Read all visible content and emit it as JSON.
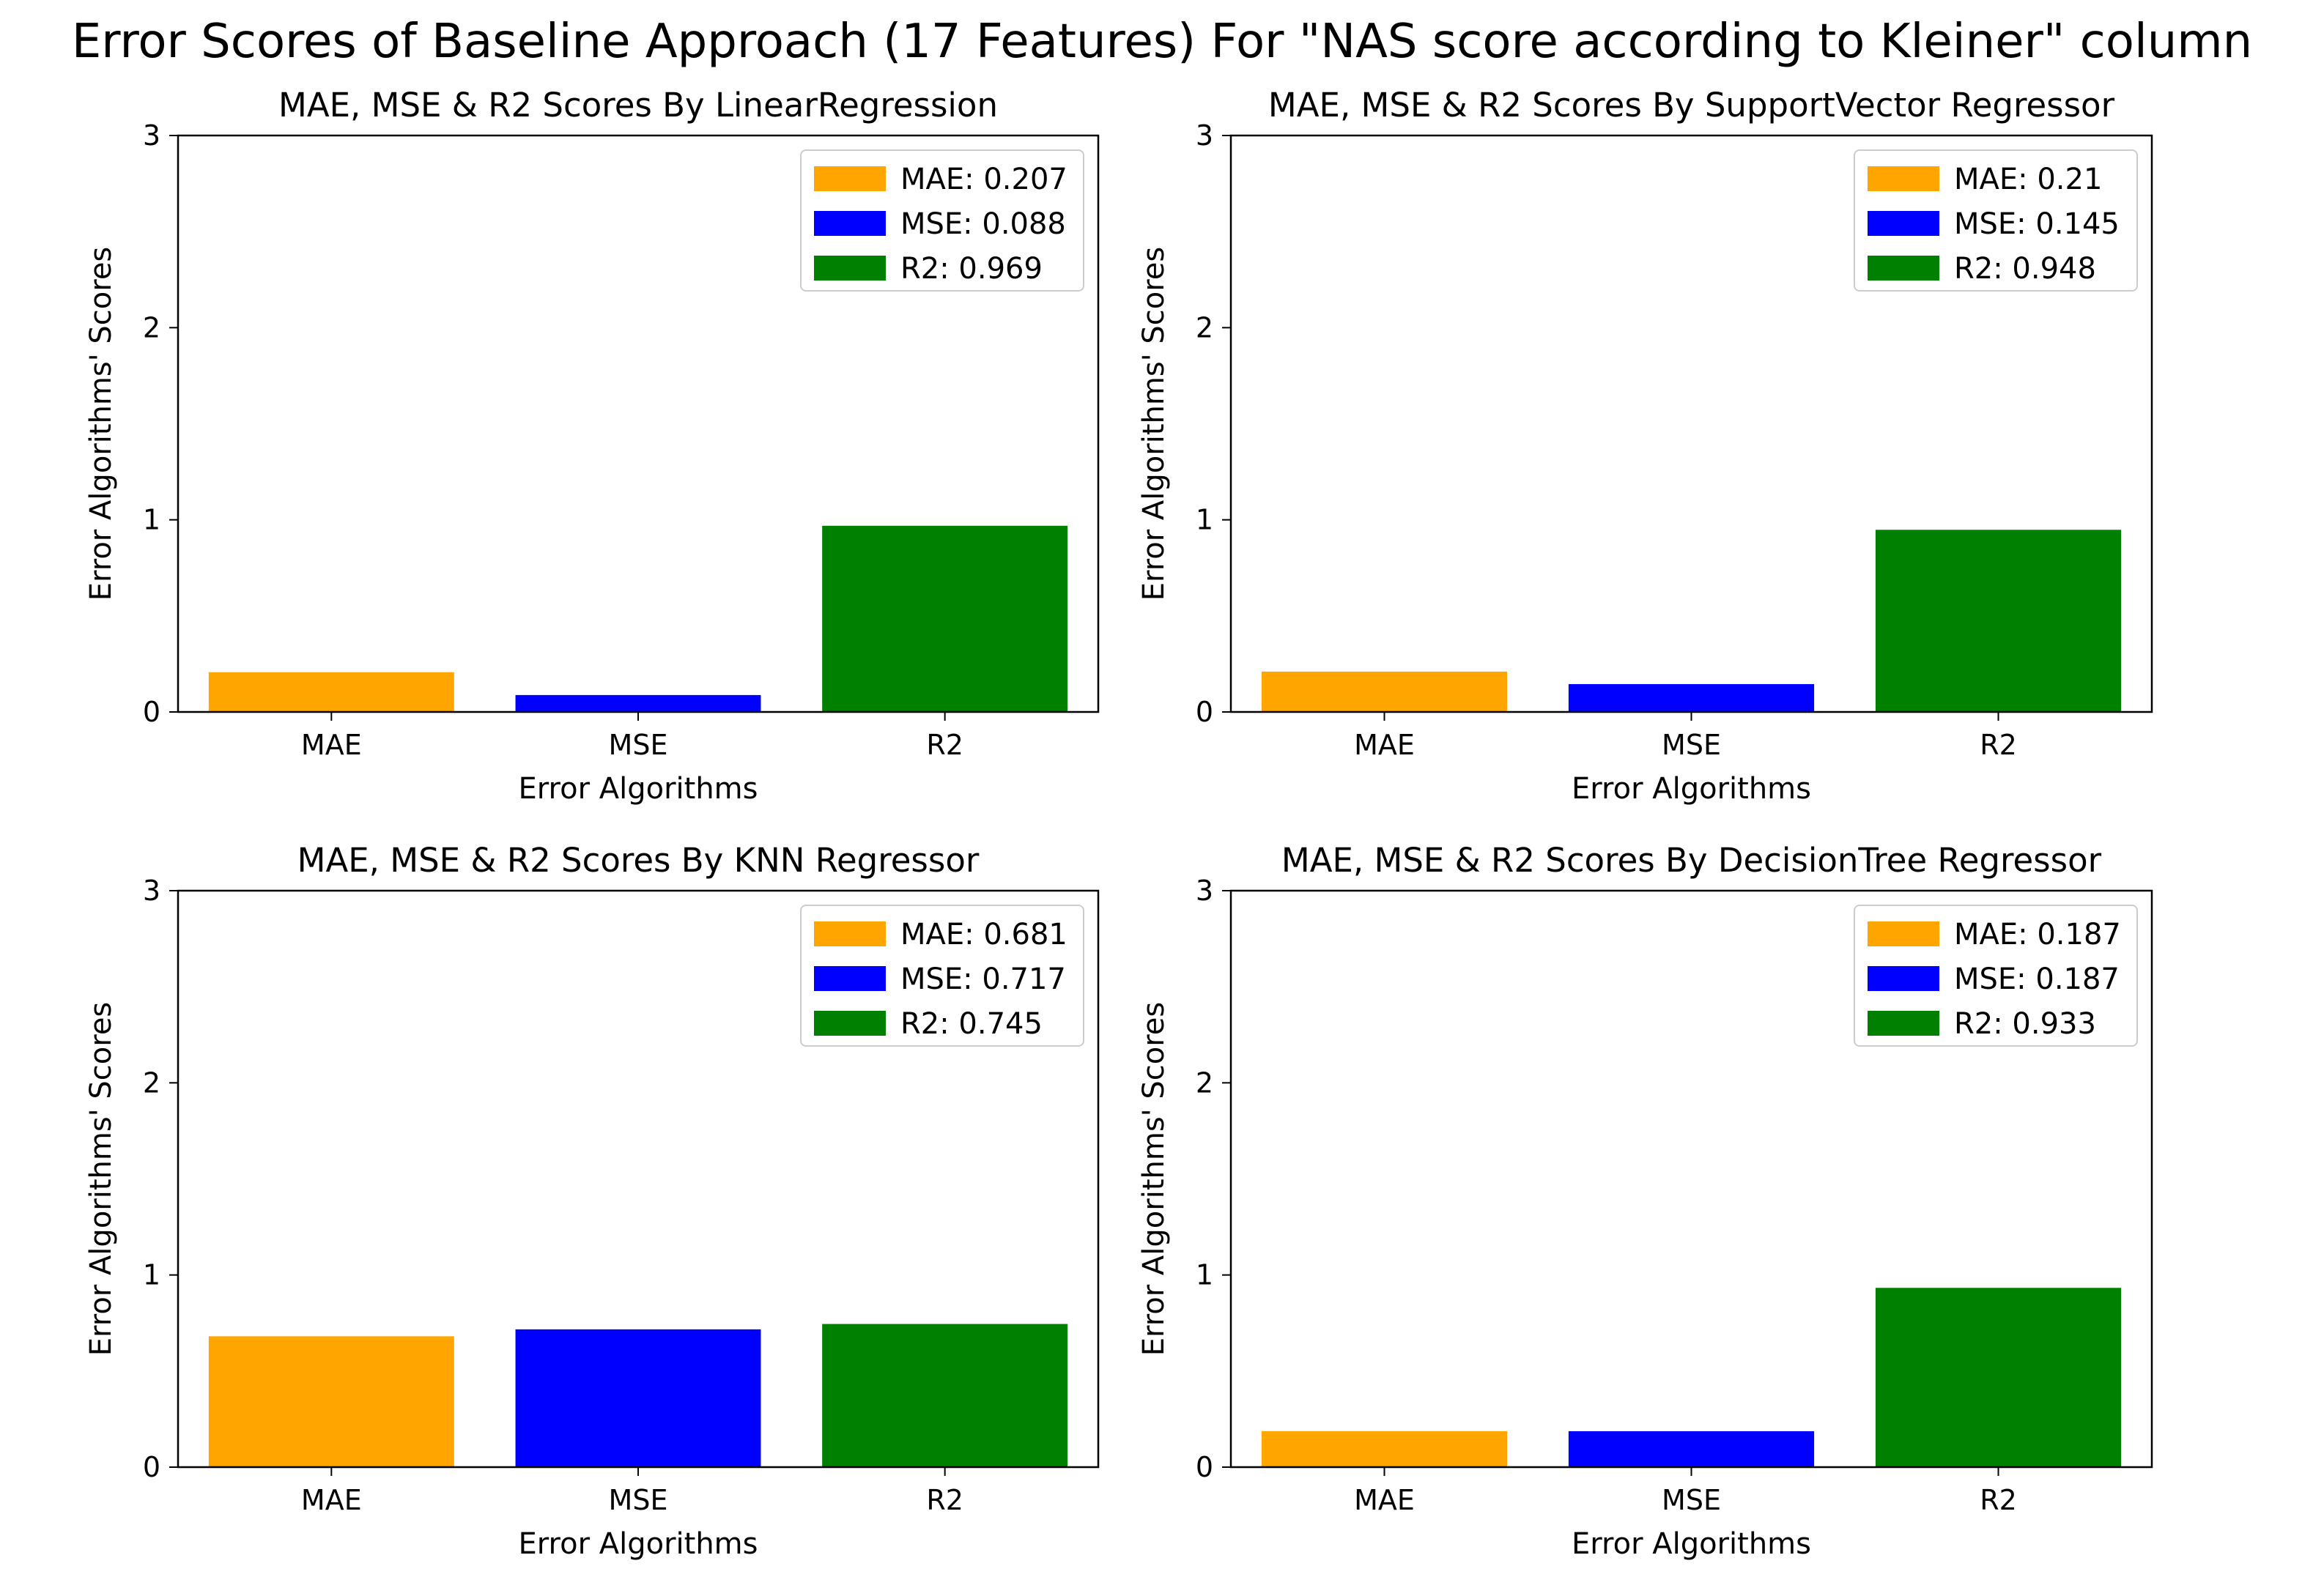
{
  "figure": {
    "suptitle": "Error Scores of Baseline Approach (17 Features) For \"NAS score according to Kleiner\" column"
  },
  "colors": {
    "MAE": "#FFA500",
    "MSE": "#0000FF",
    "R2": "#008000"
  },
  "chart_data": [
    {
      "type": "bar",
      "title": "MAE, MSE & R2 Scores By LinearRegression",
      "categories": [
        "MAE",
        "MSE",
        "R2"
      ],
      "values": [
        0.207,
        0.088,
        0.969
      ],
      "legend": [
        "MAE: 0.207",
        "MSE: 0.088",
        "R2: 0.969"
      ],
      "xlabel": "Error Algorithms",
      "ylabel": "Error Algorithms' Scores",
      "ylim": [
        0,
        3
      ],
      "yticks": [
        0,
        1,
        2,
        3
      ],
      "legend_position": "top-right",
      "grid": false
    },
    {
      "type": "bar",
      "title": "MAE, MSE & R2 Scores By SupportVector Regressor",
      "categories": [
        "MAE",
        "MSE",
        "R2"
      ],
      "values": [
        0.21,
        0.145,
        0.948
      ],
      "legend": [
        "MAE: 0.21",
        "MSE: 0.145",
        "R2: 0.948"
      ],
      "xlabel": "Error Algorithms",
      "ylabel": "Error Algorithms' Scores",
      "ylim": [
        0,
        3
      ],
      "yticks": [
        0,
        1,
        2,
        3
      ],
      "legend_position": "top-right",
      "grid": false
    },
    {
      "type": "bar",
      "title": "MAE, MSE & R2 Scores By KNN Regressor",
      "categories": [
        "MAE",
        "MSE",
        "R2"
      ],
      "values": [
        0.681,
        0.717,
        0.745
      ],
      "legend": [
        "MAE: 0.681",
        "MSE: 0.717",
        "R2: 0.745"
      ],
      "xlabel": "Error Algorithms",
      "ylabel": "Error Algorithms' Scores",
      "ylim": [
        0,
        3
      ],
      "yticks": [
        0,
        1,
        2,
        3
      ],
      "legend_position": "top-right",
      "grid": false
    },
    {
      "type": "bar",
      "title": "MAE, MSE & R2 Scores By DecisionTree Regressor",
      "categories": [
        "MAE",
        "MSE",
        "R2"
      ],
      "values": [
        0.187,
        0.187,
        0.933
      ],
      "legend": [
        "MAE: 0.187",
        "MSE: 0.187",
        "R2: 0.933"
      ],
      "xlabel": "Error Algorithms",
      "ylabel": "Error Algorithms' Scores",
      "ylim": [
        0,
        3
      ],
      "yticks": [
        0,
        1,
        2,
        3
      ],
      "legend_position": "top-right",
      "grid": false
    }
  ]
}
